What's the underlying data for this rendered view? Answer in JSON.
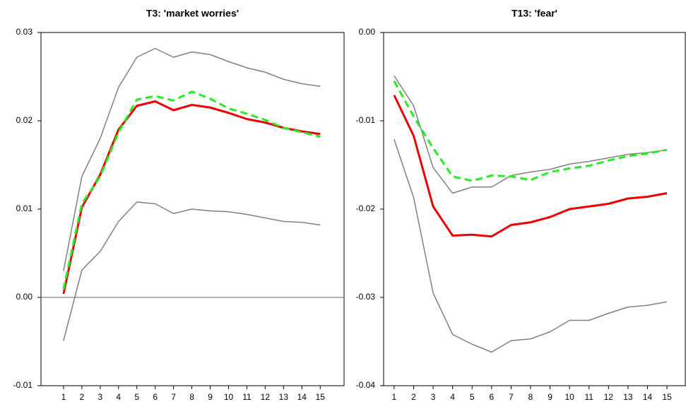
{
  "chart_data": [
    {
      "type": "line",
      "title": "T3: 'market worries'",
      "x": [
        1,
        2,
        3,
        4,
        5,
        6,
        7,
        8,
        9,
        10,
        11,
        12,
        13,
        14,
        15
      ],
      "xlim": [
        -0.23,
        16.3
      ],
      "xticks": [
        1,
        2,
        3,
        4,
        5,
        6,
        7,
        8,
        9,
        10,
        11,
        12,
        13,
        14,
        15
      ],
      "ylim": [
        -0.01,
        0.03
      ],
      "yticks": [
        -0.01,
        {
          "value": 0,
          "label": "0.00"
        },
        0.01,
        0.02,
        0.03
      ],
      "zero_line": true,
      "series": [
        {
          "color": "#808080",
          "dashed": false,
          "values": [
            0.003,
            0.0137,
            0.018,
            0.0238,
            0.0272,
            0.0282,
            0.0272,
            0.0278,
            0.0275,
            0.0267,
            0.026,
            0.0255,
            0.0247,
            0.0242,
            0.0239
          ]
        },
        {
          "color": "#808080",
          "dashed": false,
          "values": [
            -0.0049,
            0.0031,
            0.0052,
            0.0086,
            0.0108,
            0.0106,
            0.0095,
            0.01,
            0.0098,
            0.0097,
            0.0094,
            0.009,
            0.0086,
            0.0085,
            0.0082
          ]
        },
        {
          "color": "#ee0000",
          "dashed": false,
          "values": [
            0.0004,
            0.0102,
            0.0139,
            0.019,
            0.0217,
            0.0222,
            0.0212,
            0.0218,
            0.0215,
            0.0209,
            0.0202,
            0.0198,
            0.0192,
            0.0188,
            0.0185
          ]
        },
        {
          "color": "#22ee22",
          "dashed": true,
          "values": [
            0.0009,
            0.0106,
            0.0137,
            0.0187,
            0.0224,
            0.0228,
            0.0223,
            0.0233,
            0.0225,
            0.0214,
            0.0208,
            0.0201,
            0.0192,
            0.0187,
            0.0182
          ]
        }
      ]
    },
    {
      "type": "line",
      "title": "T13: 'fear'",
      "x": [
        1,
        2,
        3,
        4,
        5,
        6,
        7,
        8,
        9,
        10,
        11,
        12,
        13,
        14,
        15
      ],
      "xlim": [
        0.46,
        15.94
      ],
      "xticks": [
        1,
        2,
        3,
        4,
        5,
        6,
        7,
        8,
        9,
        10,
        11,
        12,
        13,
        14,
        15
      ],
      "ylim": [
        -0.04,
        0
      ],
      "yticks": [
        -0.04,
        -0.03,
        -0.02,
        -0.01,
        {
          "value": 0,
          "label": "0.00"
        }
      ],
      "zero_line": false,
      "series": [
        {
          "color": "#808080",
          "dashed": false,
          "values": [
            -0.0049,
            -0.0083,
            -0.0153,
            -0.0182,
            -0.0175,
            -0.0175,
            -0.0162,
            -0.0158,
            -0.0155,
            -0.0149,
            -0.0146,
            -0.0142,
            -0.0138,
            -0.0136,
            -0.0133
          ]
        },
        {
          "color": "#808080",
          "dashed": false,
          "values": [
            -0.0121,
            -0.0187,
            -0.0295,
            -0.0342,
            -0.0353,
            -0.0362,
            -0.0349,
            -0.0347,
            -0.0339,
            -0.0326,
            -0.0326,
            -0.0318,
            -0.0311,
            -0.0309,
            -0.0305
          ]
        },
        {
          "color": "#ee0000",
          "dashed": false,
          "values": [
            -0.0071,
            -0.0117,
            -0.0197,
            -0.023,
            -0.0229,
            -0.0231,
            -0.0218,
            -0.0215,
            -0.0209,
            -0.02,
            -0.0197,
            -0.0194,
            -0.0188,
            -0.0186,
            -0.0182
          ]
        },
        {
          "color": "#22ee22",
          "dashed": true,
          "values": [
            -0.0055,
            -0.0095,
            -0.0131,
            -0.0163,
            -0.0168,
            -0.0162,
            -0.0163,
            -0.0167,
            -0.0158,
            -0.0154,
            -0.0151,
            -0.0145,
            -0.014,
            -0.0137,
            -0.0133
          ]
        }
      ]
    }
  ]
}
